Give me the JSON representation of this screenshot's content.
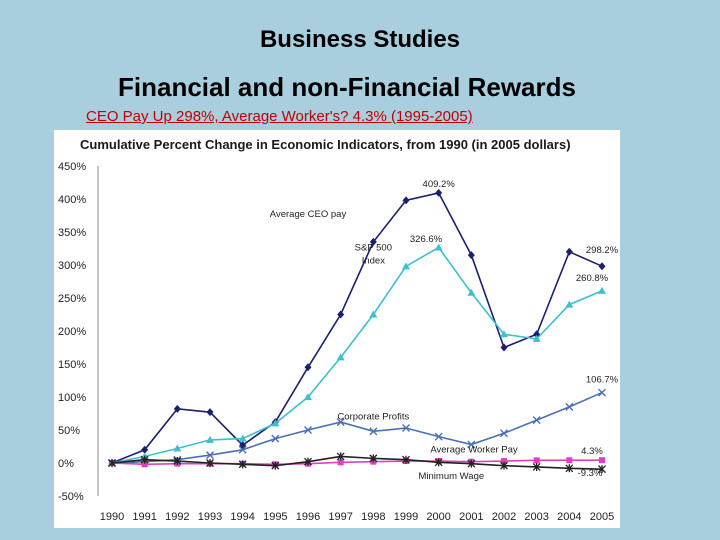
{
  "slide": {
    "title": "Business Studies",
    "subtitle": "Financial and non-Financial Rewards",
    "link_text": "CEO Pay Up 298%, Average Worker's? 4.3% (1995-2005)"
  },
  "chart_data": {
    "type": "line",
    "title": "Cumulative Percent Change in Economic Indicators, from 1990 (in 2005 dollars)",
    "x": [
      "1990",
      "1991",
      "1992",
      "1993",
      "1994",
      "1995",
      "1996",
      "1997",
      "1998",
      "1999",
      "2000",
      "2001",
      "2002",
      "2003",
      "2004",
      "2005"
    ],
    "y_ticks": [
      "450%",
      "400%",
      "350%",
      "300%",
      "250%",
      "200%",
      "150%",
      "100%",
      "50%",
      "0%",
      "-50%"
    ],
    "ylim": [
      -50,
      450
    ],
    "grid": false,
    "series": [
      {
        "name": "Average CEO pay",
        "color": "#1a1f6e",
        "marker": "diamond",
        "values": [
          0,
          20,
          82,
          77,
          27,
          62,
          145,
          225,
          335,
          398,
          409.2,
          315,
          175,
          195,
          320,
          298.2
        ]
      },
      {
        "name": "S&P 500 Index",
        "color": "#3dbfcf",
        "marker": "triangle",
        "values": [
          0,
          10,
          22,
          35,
          37,
          60,
          100,
          160,
          225,
          298,
          326.6,
          258,
          195,
          188,
          240,
          260.8
        ]
      },
      {
        "name": "Corporate Profits",
        "color": "#4a6fb5",
        "marker": "x",
        "values": [
          0,
          2,
          5,
          12,
          20,
          37,
          50,
          62,
          48,
          53,
          40,
          28,
          45,
          65,
          85,
          106.7
        ]
      },
      {
        "name": "Average Worker Pay",
        "color": "#e040c0",
        "marker": "square",
        "values": [
          0,
          -2,
          -1,
          -1,
          -1,
          -2,
          -1,
          1,
          2,
          3,
          3,
          2,
          3,
          4,
          4.2,
          4.3
        ]
      },
      {
        "name": "Minimum Wage",
        "color": "#222222",
        "marker": "star",
        "values": [
          0,
          5,
          3,
          0,
          -2,
          -4,
          2,
          10,
          7,
          5,
          1,
          -1,
          -4,
          -6,
          -8,
          -9.3
        ]
      }
    ],
    "annotations": [
      {
        "text": "409.2%",
        "x": "2000",
        "y": 409.2,
        "dx": 0,
        "dy": -6
      },
      {
        "text": "Average CEO pay",
        "x": "1996",
        "y": 373,
        "dx": 0,
        "dy": 0
      },
      {
        "text": "326.6%",
        "x": "1999",
        "y": 335,
        "dx": 20,
        "dy": 0
      },
      {
        "text": "S&P 500",
        "x": "1998",
        "y": 322,
        "dx": 0,
        "dy": 0
      },
      {
        "text": "Index",
        "x": "1998",
        "y": 302,
        "dx": 0,
        "dy": 0
      },
      {
        "text": "298.2%",
        "x": "2005",
        "y": 318,
        "dx": 0,
        "dy": 0
      },
      {
        "text": "260.8%",
        "x": "2005",
        "y": 276,
        "dx": -10,
        "dy": 0
      },
      {
        "text": "106.7%",
        "x": "2005",
        "y": 122,
        "dx": 0,
        "dy": 0
      },
      {
        "text": "Corporate Profits",
        "x": "1998",
        "y": 66,
        "dx": 0,
        "dy": 0
      },
      {
        "text": "Average Worker Pay",
        "x": "2002",
        "y": 16,
        "dx": -30,
        "dy": 0
      },
      {
        "text": "4.3%",
        "x": "2005",
        "y": 14,
        "dx": -10,
        "dy": 0
      },
      {
        "text": "Minimum Wage",
        "x": "2001",
        "y": -24,
        "dx": -20,
        "dy": 0
      },
      {
        "text": "-9.3%",
        "x": "2005",
        "y": -20,
        "dx": -12,
        "dy": 0
      }
    ]
  }
}
